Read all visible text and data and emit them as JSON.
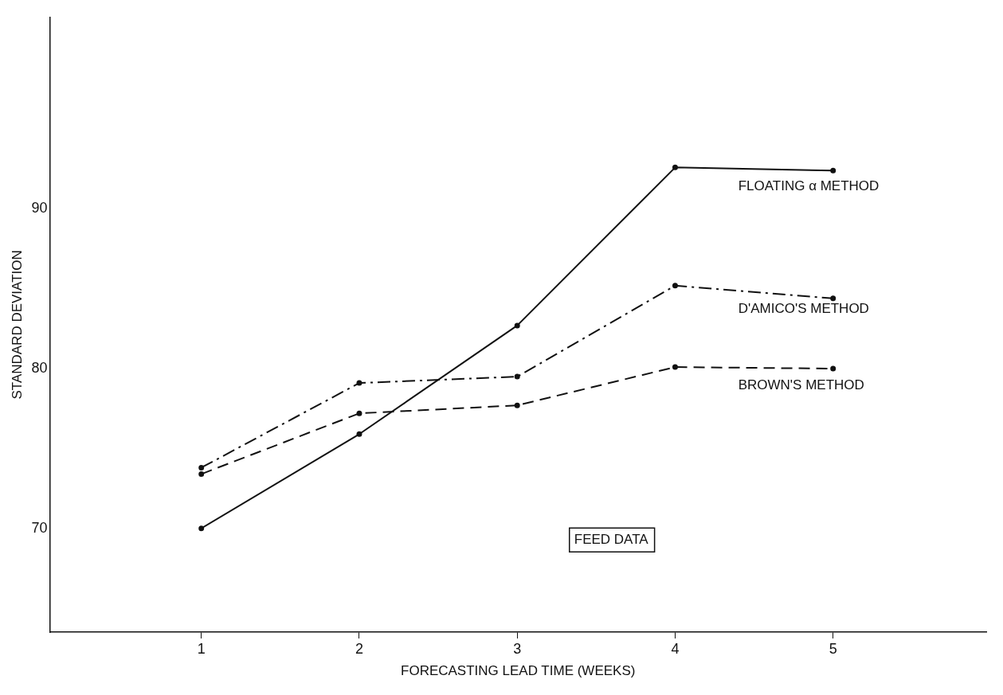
{
  "chart_data": {
    "type": "line",
    "xlabel": "FORECASTING LEAD TIME (WEEKS)",
    "ylabel": "STANDARD DEVIATION",
    "x": [
      1,
      2,
      3,
      4,
      5
    ],
    "series": [
      {
        "name": "FLOATING α METHOD",
        "color": "#111111",
        "line_style": "solid",
        "values": [
          70,
          75.9,
          82.7,
          92.6,
          92.4
        ]
      },
      {
        "name": "D'AMICO'S METHOD",
        "color": "#111111",
        "line_style": "dashdot",
        "values": [
          73.8,
          79.1,
          79.5,
          85.2,
          84.4
        ]
      },
      {
        "name": "BROWN'S METHOD",
        "color": "#111111",
        "line_style": "dashed",
        "values": [
          73.4,
          77.2,
          77.7,
          80.1,
          80.0
        ]
      }
    ],
    "xlim": [
      0.04,
      5.97
    ],
    "xticks": [
      1,
      2,
      3,
      4,
      5
    ],
    "ylim": [
      63.5,
      102
    ],
    "yticks": [
      70,
      80,
      90
    ],
    "grid": false,
    "legend": false,
    "marker": "circle",
    "annotations": [
      "FEED DATA"
    ]
  }
}
